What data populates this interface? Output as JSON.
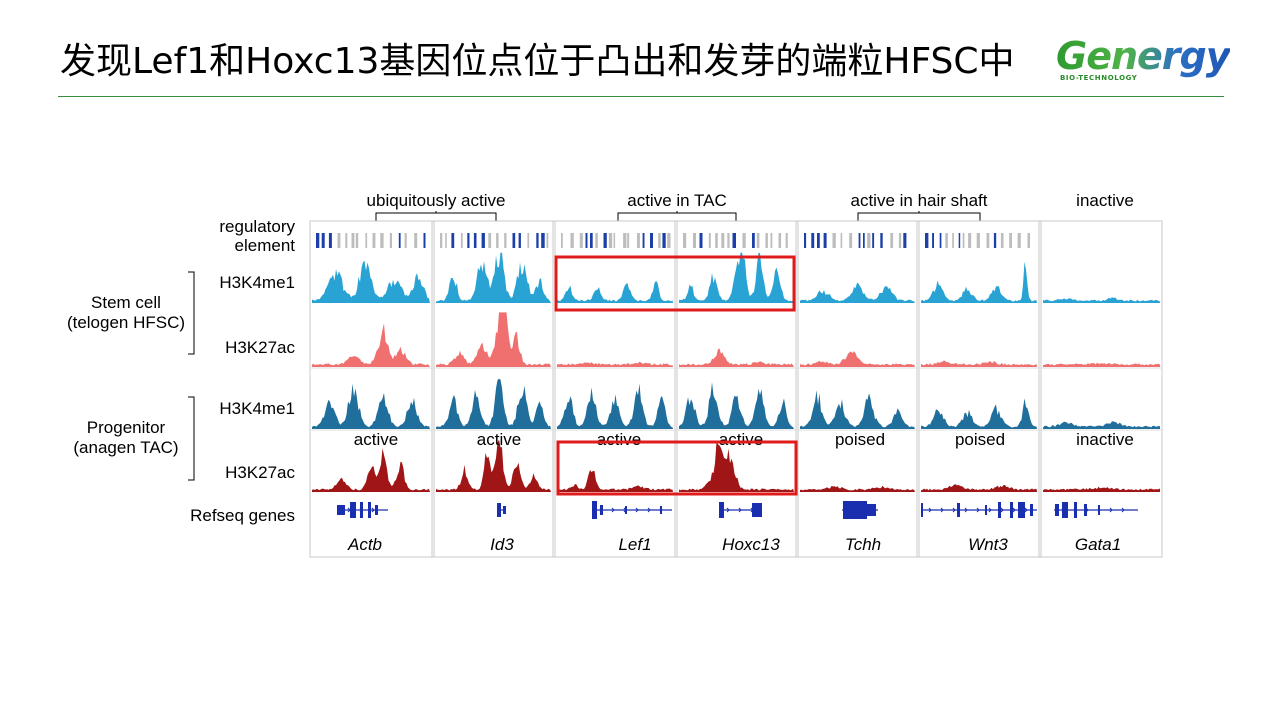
{
  "title": "发现Lef1和Hoxc13基因位点位于凸出和发芽的端粒HFSC中",
  "logo": {
    "word": "Genergy",
    "sub": "BIO-TECHNOLOGY"
  },
  "figure": {
    "categories": [
      "ubiquitously active",
      "active in TAC",
      "active in hair shaft",
      "inactive"
    ],
    "row_labels": {
      "regulatory": [
        "regulatory",
        "element"
      ],
      "stem_cell": [
        "Stem cell",
        "(telogen HFSC)"
      ],
      "progenitor": [
        "Progenitor",
        "(anagen TAC)"
      ],
      "h3k4me1": "H3K4me1",
      "h3k27ac": "H3K27ac",
      "refseq": "Refseq genes"
    },
    "genes": [
      "Actb",
      "Id3",
      "Lef1",
      "Hoxc13",
      "Tchh",
      "Wnt3",
      "Gata1"
    ],
    "states": [
      "active",
      "active",
      "active",
      "active",
      "poised",
      "poised",
      "inactive"
    ],
    "colors": {
      "regulatory_dark": "#1c3fa8",
      "regulatory_light": "#bdbdbd",
      "stem_h3k4me1": "#29a3d4",
      "stem_h3k27ac": "#f07070",
      "prog_h3k4me1": "#1f6e9c",
      "prog_h3k27ac": "#a01515",
      "gene": "#1a2fb0",
      "highlight": "#e01b1b"
    }
  }
}
